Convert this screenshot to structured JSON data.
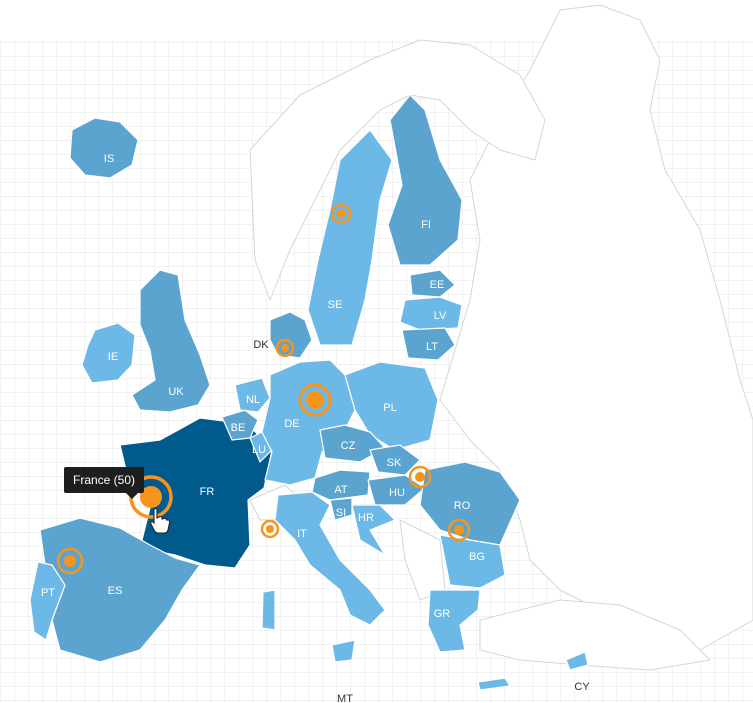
{
  "colors": {
    "low": "#6cb9e8",
    "mid": "#5ba4d0",
    "selected": "#015a8c",
    "marker": "#f7941d",
    "grid": "#e4e4e4",
    "outline": "#d6d6d6"
  },
  "countries": {
    "IS": "IS",
    "IE": "IE",
    "UK": "UK",
    "FR": "FR",
    "ES": "ES",
    "PT": "PT",
    "BE": "BE",
    "NL": "NL",
    "LU": "LU",
    "DE": "DE",
    "DK": "DK",
    "SE": "SE",
    "FI": "FI",
    "EE": "EE",
    "LV": "LV",
    "LT": "LT",
    "PL": "PL",
    "CZ": "CZ",
    "SK": "SK",
    "AT": "AT",
    "HU": "HU",
    "SI": "SI",
    "HR": "HR",
    "IT": "IT",
    "RO": "RO",
    "BG": "BG",
    "GR": "GR",
    "CY": "CY",
    "MT": "MT"
  },
  "markers": [
    {
      "country": "SE",
      "size": "small"
    },
    {
      "country": "DK",
      "size": "small"
    },
    {
      "country": "DE",
      "size": "large"
    },
    {
      "country": "SK",
      "size": "small"
    },
    {
      "country": "RO",
      "size": "small"
    },
    {
      "country": "IT",
      "size": "small"
    },
    {
      "country": "FR",
      "size": "large"
    },
    {
      "country": "PT",
      "size": "small"
    }
  ],
  "tooltip": {
    "text": "France (50)"
  },
  "selected_country": "FR",
  "cursor": "hand-pointer-icon"
}
